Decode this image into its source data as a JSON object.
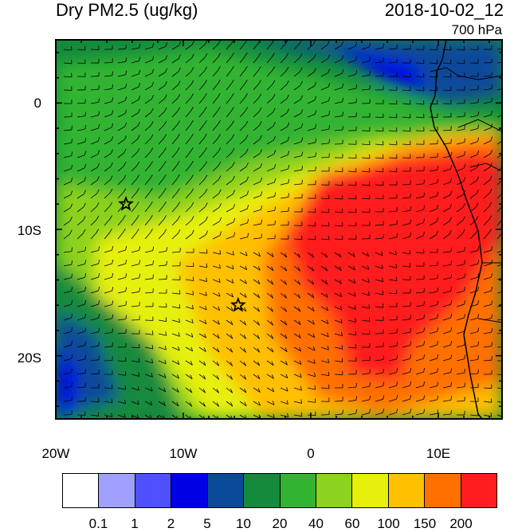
{
  "title_left": "Dry PM2.5 (ug/kg)",
  "title_right": "2018-10-02_12",
  "level": "700 hPa",
  "y_ticks": [
    "0",
    "10S",
    "20S"
  ],
  "x_ticks": [
    "20W",
    "10W",
    "0",
    "10E"
  ],
  "colorbar": {
    "colors": [
      "#ffffff",
      "#a0a0ff",
      "#5050ff",
      "#0000e6",
      "#0a4a9a",
      "#138a3c",
      "#32b432",
      "#8cd21e",
      "#e6f00a",
      "#ffc000",
      "#ff7000",
      "#ff1e1e"
    ],
    "labels": [
      "0.1",
      "1",
      "2",
      "5",
      "10",
      "20",
      "40",
      "60",
      "100",
      "150",
      "200"
    ]
  },
  "markers": {
    "icon": "star-icon",
    "points": [
      {
        "lon": -14.5,
        "lat": -8.0
      },
      {
        "lon": -5.7,
        "lat": -16.0
      }
    ]
  },
  "map_extent": {
    "lon": [
      -20,
      15
    ],
    "lat": [
      -25,
      5
    ]
  }
}
